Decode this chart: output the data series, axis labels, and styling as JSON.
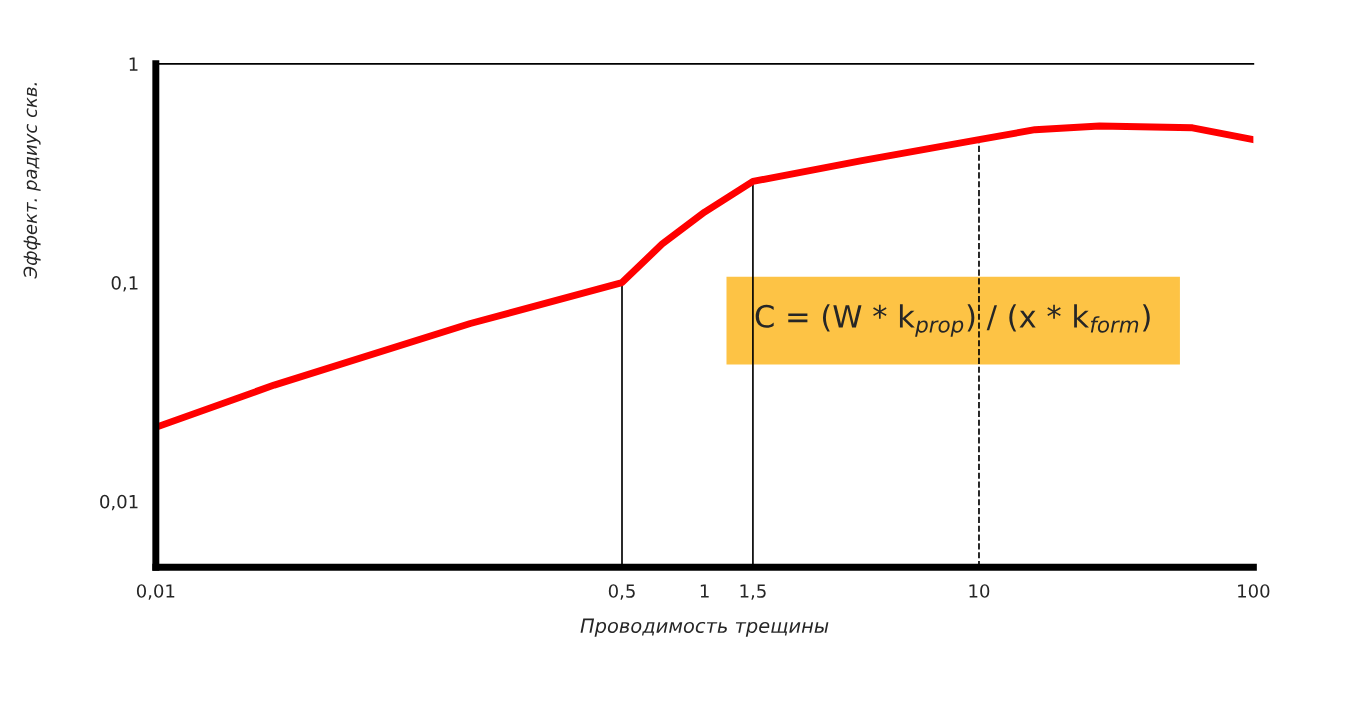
{
  "chart_data": {
    "type": "line",
    "xlabel": "Проводимость трещины",
    "ylabel": "Эффект. радиус скв.",
    "log": "xy",
    "x": [
      0.01,
      0.027,
      0.14,
      0.5,
      0.7,
      1,
      1.5,
      3.7,
      10,
      16,
      27.5,
      60,
      100
    ],
    "series": [
      {
        "color": "#ff0000",
        "values": [
          0.0218,
          0.034,
          0.065,
          0.1,
          0.15,
          0.21,
          0.29,
          0.36,
          0.45,
          0.5,
          0.52,
          0.51,
          0.45
        ]
      }
    ],
    "xlim": [
      0.01,
      100
    ],
    "ylim": [
      0.005,
      1
    ],
    "xticks": [
      {
        "value": 0.01,
        "label": "0,01"
      },
      {
        "value": 0.5,
        "label": "0,5"
      },
      1,
      {
        "value": 1.5,
        "label": "1,5"
      },
      10,
      100
    ],
    "yticks": [
      {
        "value": 0.01,
        "label": "0,01"
      },
      {
        "value": 0.1,
        "label": "0,1"
      },
      1
    ],
    "ref_lines": [
      {
        "axis": "x",
        "value": 0.5,
        "color": "#000000",
        "line_style": "solid"
      },
      {
        "axis": "x",
        "value": 1.5,
        "color": "#000000",
        "line_style": "solid"
      },
      {
        "axis": "x",
        "value": 10,
        "color": "#000000",
        "line_style": "dashed"
      }
    ],
    "annotations": [
      "C = (W * k$_{prop}$) / (x * k$_{form}$)"
    ],
    "grid": false,
    "legend": false,
    "marker": "none",
    "line_style": "solid"
  }
}
